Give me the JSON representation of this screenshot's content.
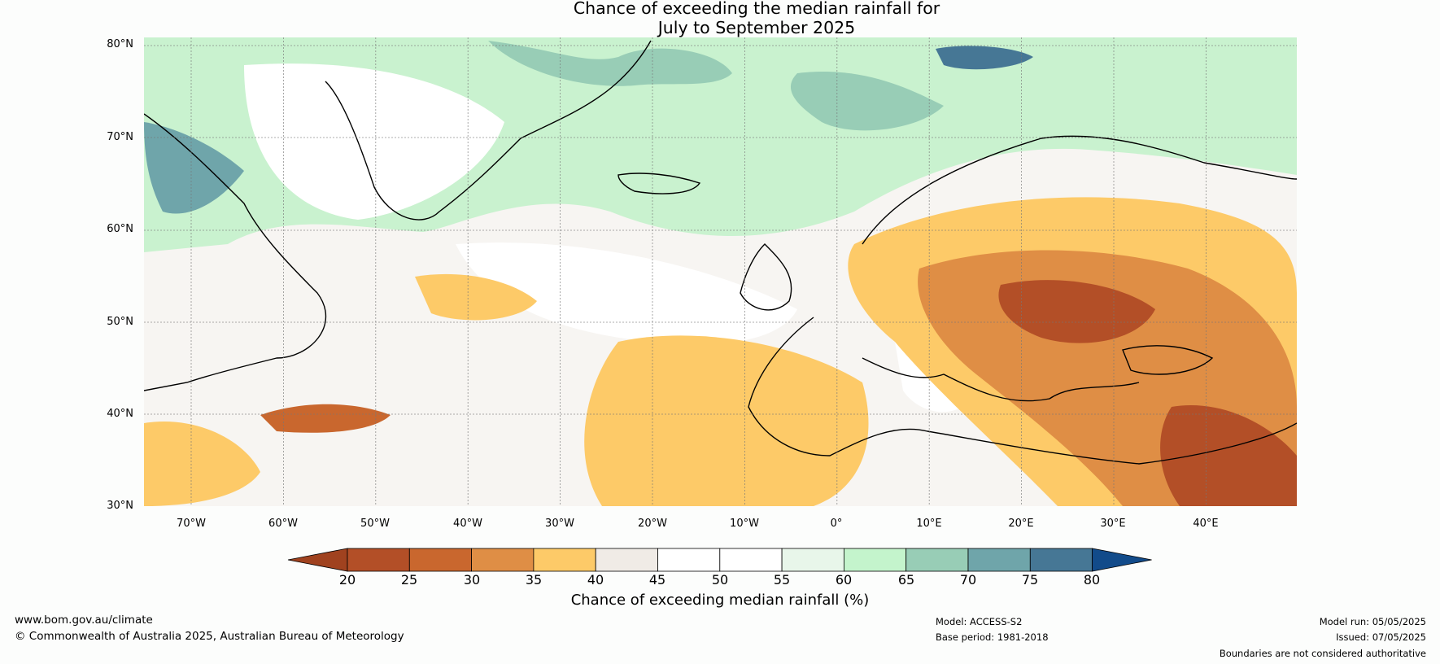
{
  "title": {
    "line1": "Chance of exceeding the median rainfall for",
    "line2": "July to September 2025"
  },
  "map": {
    "lat_labels": [
      "80°N",
      "70°N",
      "60°N",
      "50°N",
      "40°N",
      "30°N"
    ],
    "lon_labels": [
      "70°W",
      "60°W",
      "50°W",
      "40°W",
      "30°W",
      "20°W",
      "10°W",
      "0°",
      "10°E",
      "20°E",
      "30°E",
      "40°E"
    ]
  },
  "colorbar": {
    "ticks": [
      "20",
      "25",
      "30",
      "35",
      "40",
      "45",
      "50",
      "55",
      "60",
      "65",
      "70",
      "75",
      "80"
    ],
    "colors": [
      "#a0421f",
      "#b34f27",
      "#c9672e",
      "#df8e45",
      "#fdca68",
      "#f0ebe6",
      "#ffffff",
      "#ffffff",
      "#e8f6ea",
      "#c4f4cc",
      "#98cdb6",
      "#6fa5aa",
      "#467795",
      "#124b8a"
    ],
    "label": "Chance of exceeding median rainfall (%)"
  },
  "footer": {
    "website": "www.bom.gov.au/climate",
    "copyright": "© Commonwealth of Australia 2025, Australian Bureau of Meteorology",
    "model": "Model: ACCESS-S2",
    "base_period": "Base period: 1981-2018",
    "model_run": "Model run: 05/05/2025",
    "issued": "Issued: 07/05/2025",
    "disclaimer": "Boundaries are not considered authoritative"
  }
}
